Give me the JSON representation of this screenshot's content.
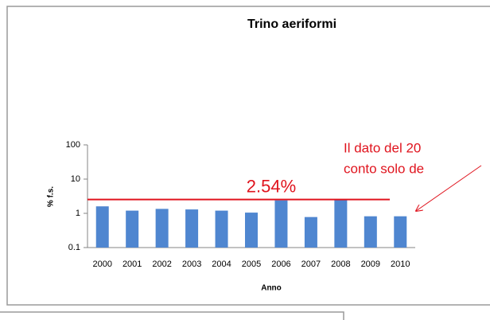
{
  "chart_data": {
    "type": "bar",
    "title": "Trino aeriformi",
    "x_label": "Anno",
    "y_label": "% f.s.",
    "categories": [
      "2000",
      "2001",
      "2002",
      "2003",
      "2004",
      "2005",
      "2006",
      "2007",
      "2008",
      "2009",
      "2010"
    ],
    "values": [
      1.6,
      1.2,
      1.35,
      1.3,
      1.2,
      1.05,
      2.4,
      0.78,
      2.5,
      0.82,
      0.82
    ],
    "color": "#4f86d0",
    "log_scale": true,
    "ylim": [
      0.1,
      100
    ],
    "yticks": [
      0.1,
      1,
      10,
      100
    ],
    "reference_line": {
      "value": 2.54,
      "label": "2.54%",
      "color": "#e0141e"
    },
    "annotations": [
      "Il dato  del 20",
      "conto solo de"
    ]
  }
}
